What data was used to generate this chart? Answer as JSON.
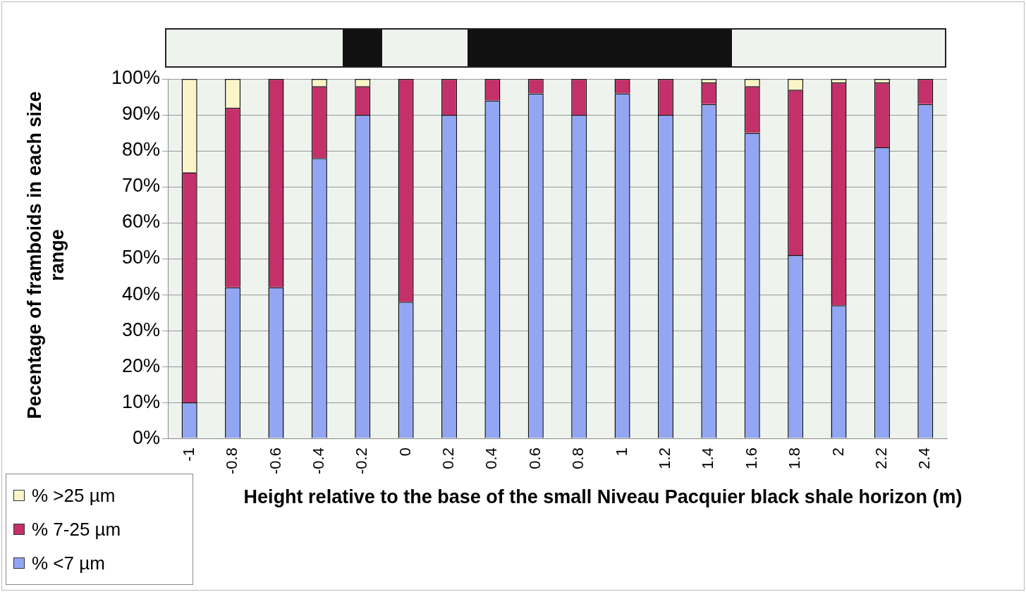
{
  "chart_data": {
    "type": "bar",
    "stacked": true,
    "xlabel": "Height relative to the base of the small Niveau Pacquier black shale horizon (m)",
    "ylabel": "Pecentage of framboids in each size range",
    "categories": [
      "-1",
      "-0.8",
      "-0.6",
      "-0.4",
      "-0.2",
      "0",
      "0.2",
      "0.4",
      "0.6",
      "0.8",
      "1",
      "1.2",
      "1.4",
      "1.6",
      "1.8",
      "2",
      "2.2",
      "2.4"
    ],
    "series": [
      {
        "name": "% <7 µm",
        "color": "#92a6f4",
        "values": [
          10,
          42,
          42,
          78,
          90,
          38,
          90,
          94,
          96,
          90,
          96,
          90,
          93,
          85,
          51,
          37,
          81,
          93
        ]
      },
      {
        "name": "% 7-25 µm",
        "color": "#c4306a",
        "values": [
          64,
          50,
          58,
          20,
          8,
          62,
          10,
          6,
          4,
          10,
          4,
          10,
          6,
          13,
          46,
          62,
          18,
          7
        ]
      },
      {
        "name": "% >25 µm",
        "color": "#faf5c8",
        "values": [
          26,
          8,
          0,
          2,
          2,
          0,
          0,
          0,
          0,
          0,
          0,
          0,
          1,
          2,
          3,
          1,
          1,
          0
        ]
      }
    ],
    "ylim": [
      0,
      100
    ],
    "yticks": [
      {
        "value": 0,
        "label": "0%"
      },
      {
        "value": 10,
        "label": "10%"
      },
      {
        "value": 20,
        "label": "20%"
      },
      {
        "value": 30,
        "label": "30%"
      },
      {
        "value": 40,
        "label": "40%"
      },
      {
        "value": 50,
        "label": "50%"
      },
      {
        "value": 60,
        "label": "60%"
      },
      {
        "value": 70,
        "label": "70%"
      },
      {
        "value": 80,
        "label": "80%"
      },
      {
        "value": 90,
        "label": "90%"
      },
      {
        "value": 100,
        "label": "100%"
      }
    ],
    "grid": "y",
    "legend": "bottom left"
  }
}
